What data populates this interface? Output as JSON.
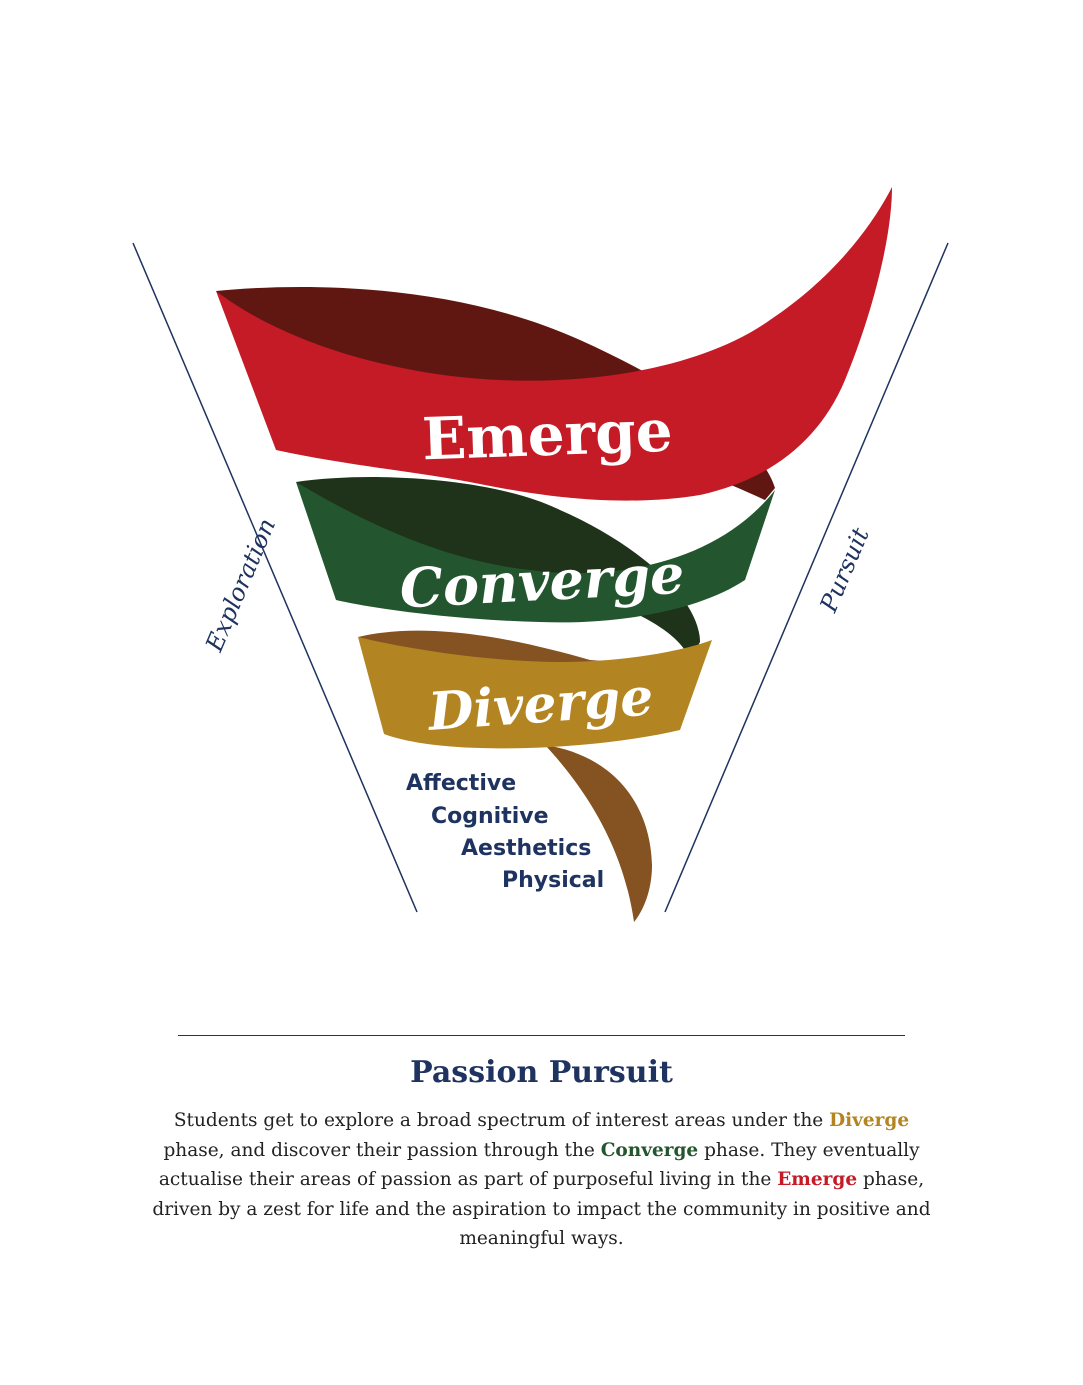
{
  "diagram": {
    "left_label": "Exploration",
    "right_label": "Pursuit",
    "bands": [
      {
        "label": "Emerge",
        "color": "#c41b26",
        "shade": "#611711"
      },
      {
        "label": "Converge",
        "color": "#23562e",
        "shade": "#1e3319"
      },
      {
        "label": "Diverge",
        "color": "#b38522",
        "shade": "#845321"
      }
    ],
    "dimensions": [
      "Affective",
      "Cognitive",
      "Aesthetics",
      "Physical"
    ],
    "line_color": "#1f3360"
  },
  "section": {
    "title": "Passion Pursuit",
    "description": {
      "p1": "Students get to explore a broad spectrum of interest areas under the ",
      "kw1": "Diverge",
      "p2": " phase, and discover their passion through the ",
      "kw2": "Converge",
      "p3": " phase. They eventually actualise their areas of passion as part of purposeful living in the ",
      "kw3": "Emerge",
      "p4": " phase, driven by a zest for life and the aspiration to impact the community in positive and meaningful ways."
    }
  }
}
